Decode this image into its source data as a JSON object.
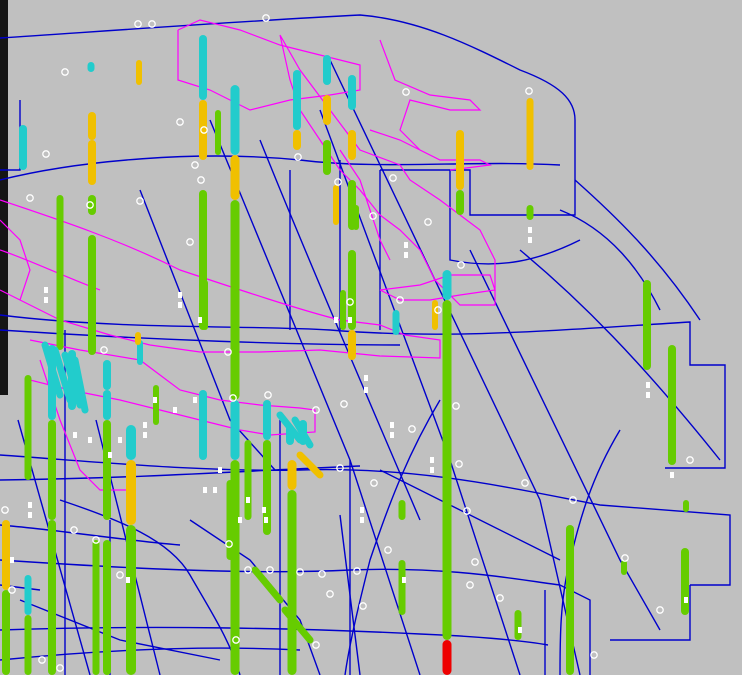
{
  "scene": {
    "kind": "3D drillhole section view",
    "colors": {
      "background": "#c0c0c0",
      "section_outline": "#0000cc",
      "highlight_outline": "#ff00ff",
      "hole_green": "#66cc00",
      "hole_yellow": "#f0c000",
      "hole_cyan": "#22cccc",
      "hole_red": "#ee0000",
      "collar_marker": "#ffffff"
    }
  }
}
